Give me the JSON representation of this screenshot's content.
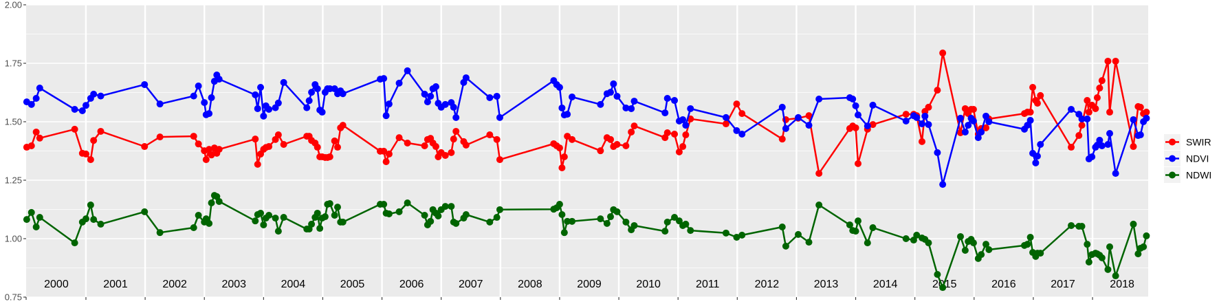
{
  "chart_data": {
    "type": "line",
    "title": "",
    "xlabel": "",
    "ylabel": "",
    "xlim": [
      1999.99,
      2018.94
    ],
    "ylim": [
      0.75,
      2.0
    ],
    "grid": true,
    "legend_position": "right",
    "y_ticks": [
      0.75,
      1.0,
      1.25,
      1.5,
      1.75,
      2.0
    ],
    "y_tick_labels": [
      "0.75",
      "1.00",
      "1.25",
      "1.50",
      "1.75",
      "2.00"
    ],
    "year_boundaries": [
      2001,
      2002,
      2003,
      2004,
      2005,
      2006,
      2007,
      2008,
      2009,
      2010,
      2011,
      2012,
      2013,
      2014,
      2015,
      2016,
      2017,
      2018
    ],
    "year_labels": [
      "2000",
      "2001",
      "2002",
      "2003",
      "2004",
      "2005",
      "2006",
      "2007",
      "2008",
      "2009",
      "2010",
      "2011",
      "2012",
      "2013",
      "2014",
      "2015",
      "2016",
      "2017",
      "2018"
    ],
    "legend": [
      {
        "label": "SWIR",
        "color": "#FF0000"
      },
      {
        "label": "NDVI",
        "color": "#0000FF"
      },
      {
        "label": "NDWI",
        "color": "#006400"
      }
    ],
    "x": [
      2000.0,
      2000.08,
      2000.16,
      2000.22,
      2000.81,
      2000.94,
      2001.0,
      2001.08,
      2001.13,
      2001.25,
      2001.99,
      2002.25,
      2002.82,
      2002.9,
      2003.0,
      2003.03,
      2003.08,
      2003.12,
      2003.17,
      2003.21,
      2003.25,
      2003.86,
      2003.9,
      2003.95,
      2004.0,
      2004.04,
      2004.09,
      2004.2,
      2004.25,
      2004.34,
      2004.73,
      2004.77,
      2004.81,
      2004.87,
      2004.91,
      2004.95,
      2004.99,
      2005.04,
      2005.08,
      2005.12,
      2005.2,
      2005.25,
      2005.3,
      2005.34,
      2005.97,
      2006.03,
      2006.07,
      2006.12,
      2006.29,
      2006.43,
      2006.72,
      2006.77,
      2006.82,
      2006.86,
      2006.91,
      2006.95,
      2007.0,
      2007.07,
      2007.17,
      2007.21,
      2007.25,
      2007.38,
      2007.42,
      2007.82,
      2007.94,
      2007.99,
      2008.9,
      2008.95,
      2009.0,
      2009.04,
      2009.08,
      2009.13,
      2009.21,
      2009.69,
      2009.8,
      2009.86,
      2009.91,
      2009.97,
      2010.12,
      2010.21,
      2010.26,
      2010.78,
      2010.82,
      2010.94,
      2011.02,
      2011.08,
      2011.13,
      2011.21,
      2011.81,
      2011.99,
      2012.08,
      2012.76,
      2012.82,
      2013.03,
      2013.21,
      2013.38,
      2013.9,
      2013.95,
      2014.0,
      2014.04,
      2014.2,
      2014.29,
      2014.85,
      2014.98,
      2015.03,
      2015.12,
      2015.17,
      2015.23,
      2015.38,
      2015.47,
      2015.77,
      2015.85,
      2015.9,
      2015.95,
      2015.99,
      2016.07,
      2016.12,
      2016.2,
      2016.25,
      2016.85,
      2016.9,
      2016.95,
      2016.99,
      2017.04,
      2017.07,
      2017.12,
      2017.64,
      2017.77,
      2017.82,
      2017.91,
      2017.94,
      2017.99,
      2018.05,
      2018.08,
      2018.12,
      2018.16,
      2018.26,
      2018.29,
      2018.39,
      2018.69,
      2018.77,
      2018.81,
      2018.86,
      2018.91
    ],
    "series": [
      {
        "name": "SWIR",
        "color": "#FF0000",
        "values": [
          1.391,
          1.397,
          1.456,
          1.43,
          1.468,
          1.365,
          1.362,
          1.338,
          1.42,
          1.459,
          1.394,
          1.435,
          1.438,
          1.405,
          1.376,
          1.338,
          1.382,
          1.358,
          1.388,
          1.365,
          1.382,
          1.426,
          1.318,
          1.362,
          1.382,
          1.39,
          1.394,
          1.424,
          1.444,
          1.403,
          1.438,
          1.438,
          1.42,
          1.409,
          1.391,
          1.35,
          1.35,
          1.347,
          1.347,
          1.35,
          1.418,
          1.391,
          1.474,
          1.485,
          1.374,
          1.374,
          1.329,
          1.362,
          1.432,
          1.409,
          1.397,
          1.424,
          1.429,
          1.409,
          1.394,
          1.35,
          1.368,
          1.356,
          1.368,
          1.426,
          1.459,
          1.415,
          1.4,
          1.444,
          1.424,
          1.338,
          1.406,
          1.397,
          1.388,
          1.303,
          1.35,
          1.438,
          1.424,
          1.376,
          1.432,
          1.424,
          1.394,
          1.403,
          1.397,
          1.456,
          1.482,
          1.432,
          1.453,
          1.447,
          1.371,
          1.394,
          1.444,
          1.512,
          1.491,
          1.576,
          1.535,
          1.426,
          1.509,
          1.515,
          1.526,
          1.279,
          1.471,
          1.482,
          1.474,
          1.321,
          1.468,
          1.488,
          1.532,
          1.532,
          1.526,
          1.415,
          1.544,
          1.562,
          1.635,
          1.794,
          1.453,
          1.556,
          1.535,
          1.553,
          1.553,
          1.447,
          1.471,
          1.474,
          1.512,
          1.535,
          1.541,
          1.541,
          1.647,
          1.591,
          1.579,
          1.612,
          1.391,
          1.441,
          1.485,
          1.591,
          1.541,
          1.571,
          1.556,
          1.603,
          1.644,
          1.676,
          1.759,
          1.541,
          1.759,
          1.394,
          1.565,
          1.562,
          1.535,
          1.541
        ]
      },
      {
        "name": "NDVI",
        "color": "#0000FF",
        "values": [
          1.585,
          1.574,
          1.6,
          1.644,
          1.553,
          1.547,
          1.57,
          1.6,
          1.618,
          1.61,
          1.659,
          1.576,
          1.61,
          1.653,
          1.582,
          1.53,
          1.535,
          1.603,
          1.673,
          1.7,
          1.682,
          1.615,
          1.556,
          1.647,
          1.524,
          1.568,
          1.553,
          1.56,
          1.58,
          1.668,
          1.56,
          1.59,
          1.626,
          1.659,
          1.641,
          1.55,
          1.541,
          1.626,
          1.641,
          1.641,
          1.641,
          1.62,
          1.632,
          1.62,
          1.682,
          1.685,
          1.526,
          1.576,
          1.665,
          1.718,
          1.618,
          1.585,
          1.609,
          1.641,
          1.65,
          1.579,
          1.562,
          1.574,
          1.582,
          1.562,
          1.518,
          1.668,
          1.688,
          1.603,
          1.609,
          1.518,
          1.676,
          1.659,
          1.647,
          1.559,
          1.529,
          1.532,
          1.606,
          1.574,
          1.62,
          1.626,
          1.662,
          1.609,
          1.559,
          1.556,
          1.588,
          1.538,
          1.6,
          1.591,
          1.503,
          1.509,
          1.485,
          1.556,
          1.518,
          1.462,
          1.447,
          1.562,
          1.471,
          1.518,
          1.485,
          1.597,
          1.603,
          1.597,
          1.568,
          1.529,
          1.482,
          1.571,
          1.503,
          1.526,
          1.518,
          1.491,
          1.524,
          1.488,
          1.368,
          1.232,
          1.515,
          1.456,
          1.485,
          1.515,
          1.503,
          1.432,
          1.456,
          1.524,
          1.5,
          1.468,
          1.485,
          1.506,
          1.365,
          1.324,
          1.353,
          1.403,
          1.553,
          1.532,
          1.512,
          1.512,
          1.341,
          1.35,
          1.391,
          1.4,
          1.421,
          1.397,
          1.403,
          1.45,
          1.279,
          1.509,
          1.441,
          1.444,
          1.5,
          1.515
        ]
      },
      {
        "name": "NDWI",
        "color": "#006400",
        "values": [
          1.082,
          1.112,
          1.05,
          1.091,
          0.982,
          1.071,
          1.085,
          1.144,
          1.082,
          1.062,
          1.115,
          1.026,
          1.047,
          1.1,
          1.071,
          1.085,
          1.065,
          1.153,
          1.185,
          1.18,
          1.159,
          1.076,
          1.103,
          1.109,
          1.059,
          1.088,
          1.1,
          1.088,
          1.032,
          1.091,
          1.041,
          1.041,
          1.062,
          1.091,
          1.109,
          1.044,
          1.088,
          1.094,
          1.147,
          1.15,
          1.1,
          1.135,
          1.071,
          1.071,
          1.147,
          1.147,
          1.109,
          1.106,
          1.115,
          1.153,
          1.1,
          1.059,
          1.074,
          1.124,
          1.109,
          1.097,
          1.124,
          1.138,
          1.138,
          1.071,
          1.065,
          1.088,
          1.103,
          1.071,
          1.091,
          1.124,
          1.126,
          1.132,
          1.147,
          1.103,
          1.026,
          1.074,
          1.074,
          1.085,
          1.065,
          1.094,
          1.124,
          1.115,
          1.071,
          1.038,
          1.056,
          1.032,
          1.071,
          1.091,
          1.076,
          1.056,
          1.062,
          1.035,
          1.024,
          1.006,
          1.015,
          1.05,
          0.968,
          1.018,
          0.985,
          1.144,
          1.059,
          1.035,
          1.032,
          1.076,
          0.982,
          1.047,
          1.0,
          0.994,
          1.015,
          1.003,
          0.997,
          0.982,
          0.847,
          0.791,
          1.009,
          0.95,
          0.988,
          0.997,
          0.982,
          0.915,
          0.932,
          0.976,
          0.953,
          0.971,
          0.976,
          1.006,
          0.941,
          0.924,
          0.938,
          0.938,
          1.056,
          1.053,
          1.053,
          0.976,
          0.9,
          0.932,
          0.938,
          0.935,
          0.929,
          0.918,
          0.868,
          0.965,
          0.841,
          1.062,
          0.935,
          0.959,
          0.965,
          1.012
        ]
      }
    ]
  }
}
